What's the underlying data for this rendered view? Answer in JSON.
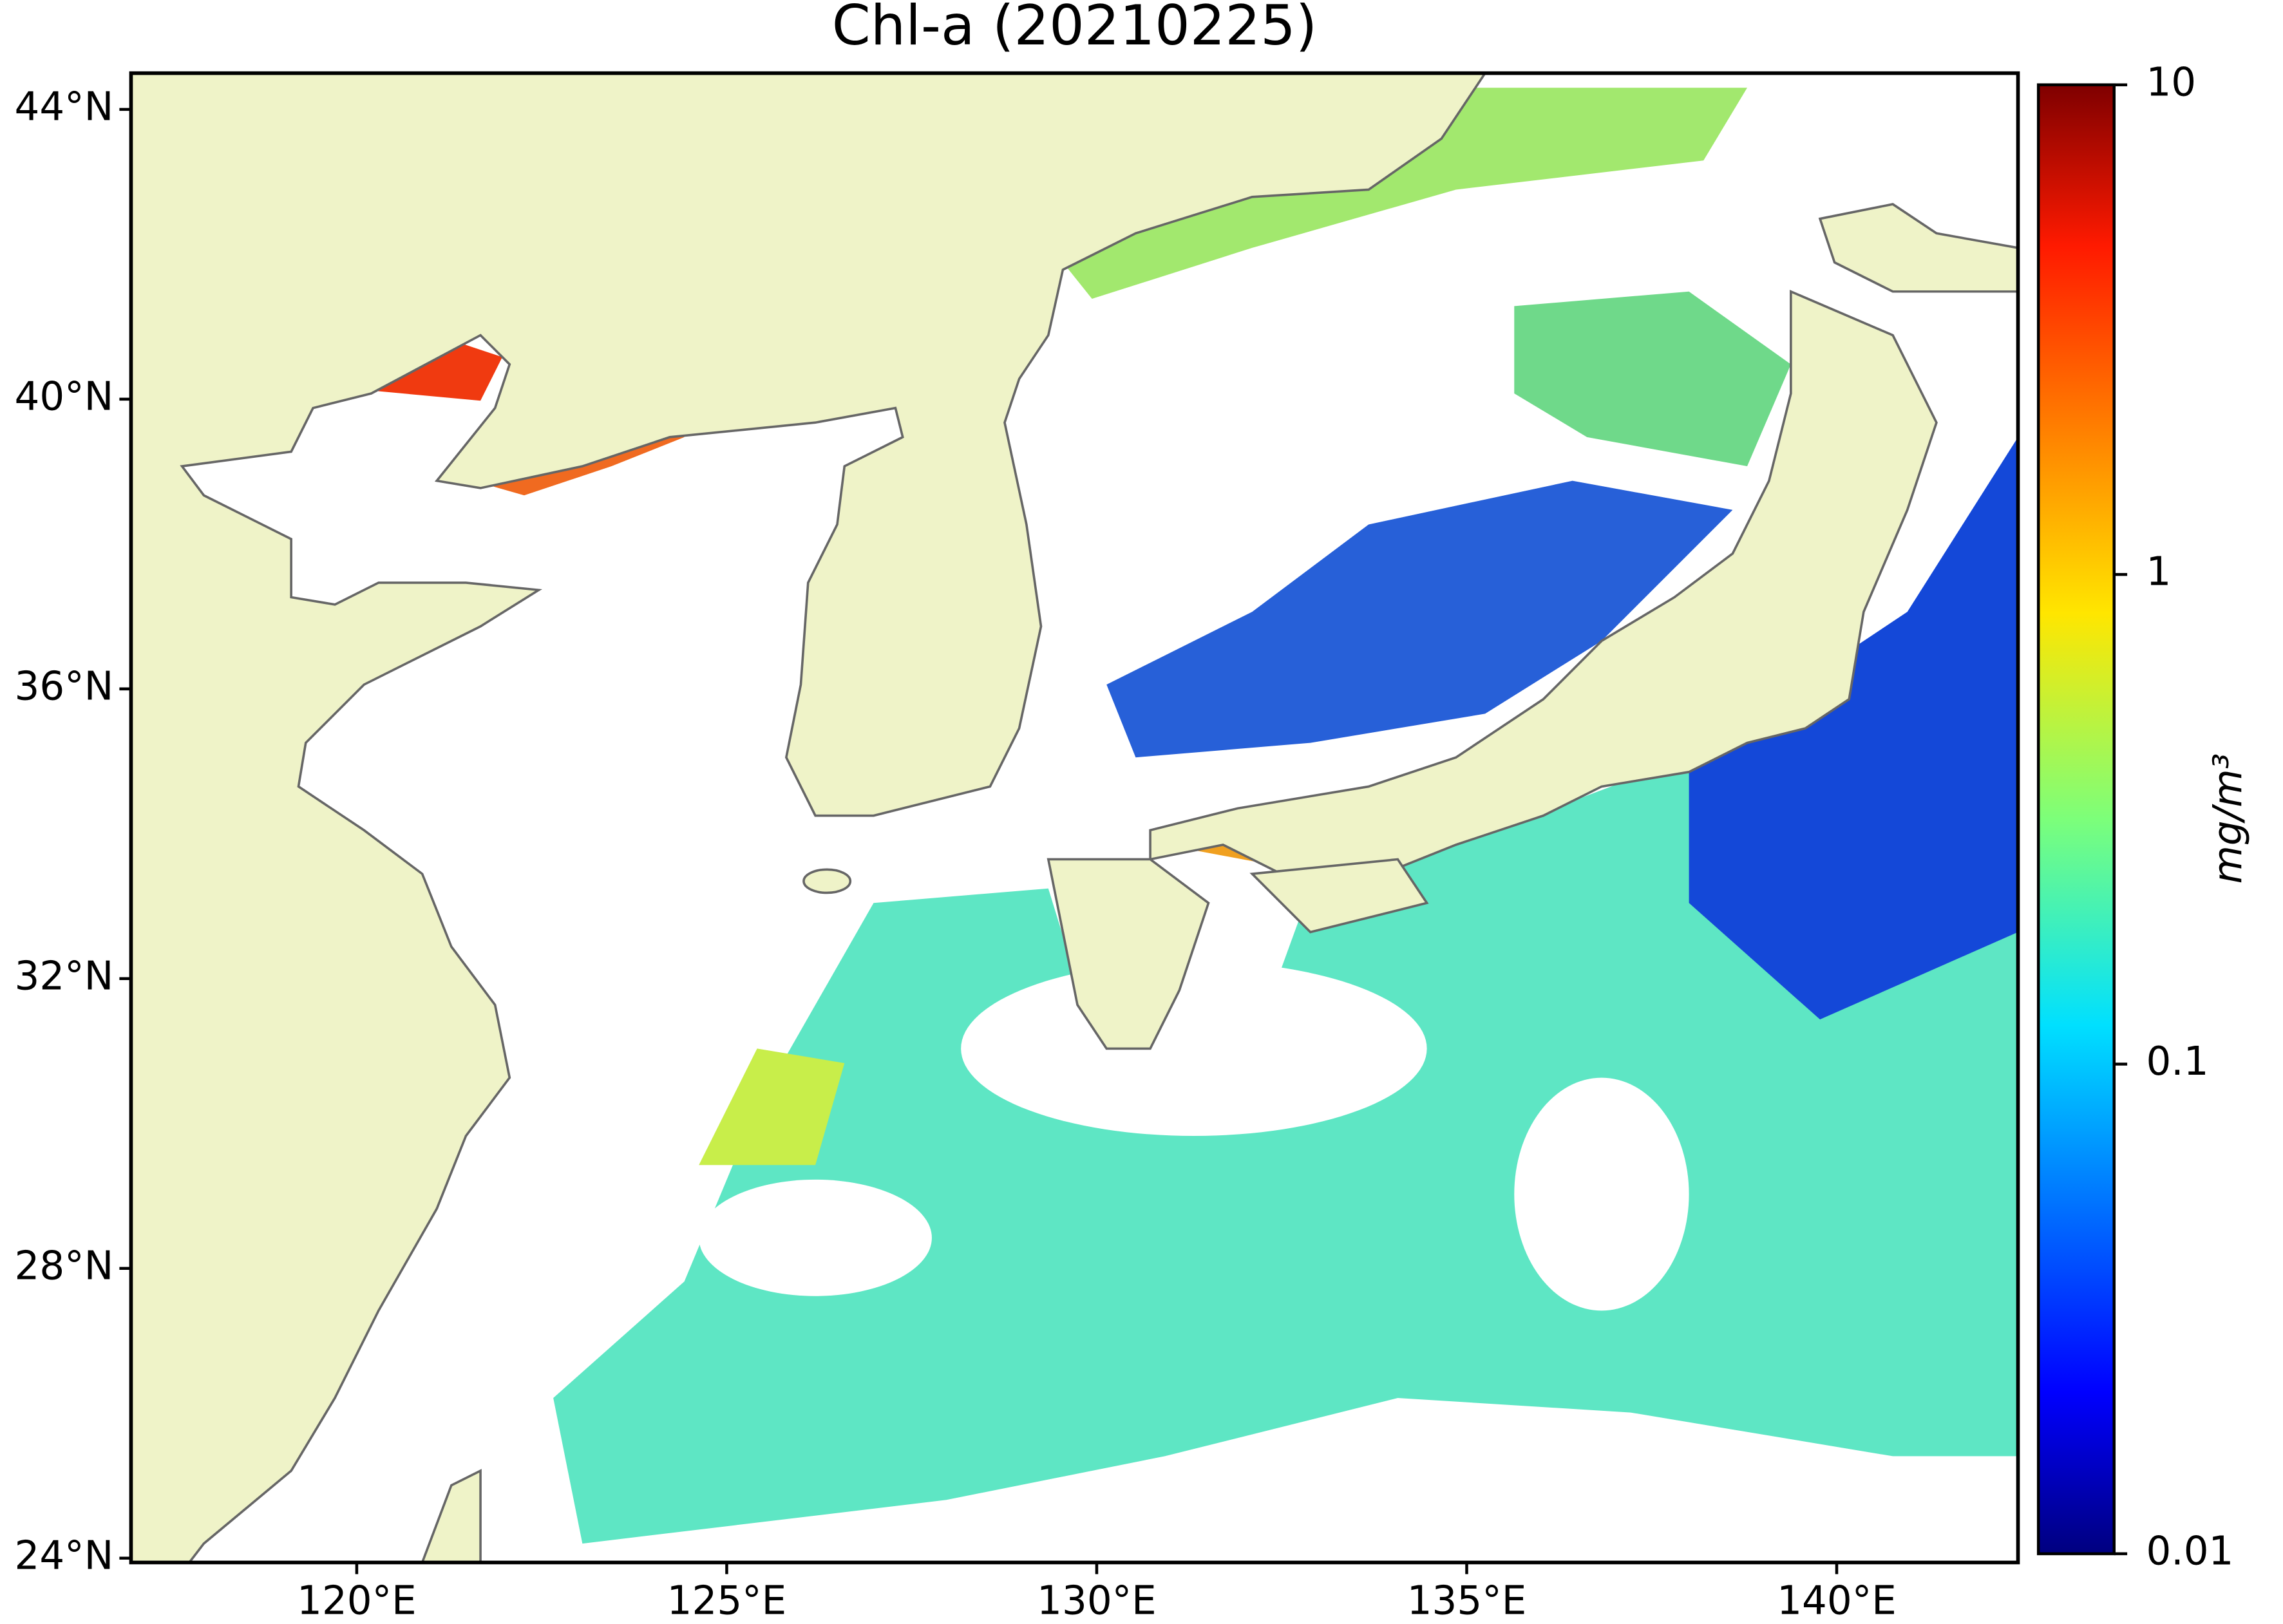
{
  "title": "Chl-a (20210225)",
  "map": {
    "xlim": [
      116.95,
      142.45
    ],
    "ylim": [
      23.94,
      44.5
    ],
    "xticks": [
      {
        "value": 120,
        "label": "120°E"
      },
      {
        "value": 125,
        "label": "125°E"
      },
      {
        "value": 130,
        "label": "130°E"
      },
      {
        "value": 135,
        "label": "135°E"
      },
      {
        "value": 140,
        "label": "140°E"
      }
    ],
    "yticks": [
      {
        "value": 24,
        "label": "24°N"
      },
      {
        "value": 28,
        "label": "28°N"
      },
      {
        "value": 32,
        "label": "32°N"
      },
      {
        "value": 36,
        "label": "36°N"
      },
      {
        "value": 40,
        "label": "40°N"
      },
      {
        "value": 44,
        "label": "44°N"
      }
    ]
  },
  "colorbar": {
    "label": "mg/m³",
    "scale": "log",
    "lim": [
      0.01,
      10
    ],
    "ticks": [
      0.01,
      0.1,
      1,
      10
    ]
  }
}
